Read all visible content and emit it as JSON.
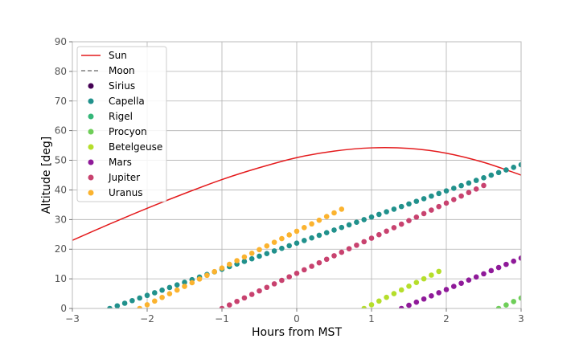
{
  "chart_data": {
    "type": "scatter",
    "xlabel": "Hours from MST",
    "ylabel": "Altitude [deg]",
    "xlim": [
      -3,
      3
    ],
    "ylim": [
      0,
      90
    ],
    "xticks": [
      -3,
      -2,
      -1,
      0,
      1,
      2,
      3
    ],
    "yticks": [
      0,
      10,
      20,
      30,
      40,
      50,
      60,
      70,
      80,
      90
    ],
    "grid": true,
    "legend_position": "top-left",
    "x_step": 0.1,
    "series": [
      {
        "name": "Sun",
        "kind": "line",
        "color": "#e41a1c",
        "x": [
          -3,
          -2.5,
          -2,
          -1.5,
          -1,
          -0.5,
          0,
          0.5,
          1,
          1.5,
          2,
          2.5,
          3
        ],
        "y": [
          23,
          28.5,
          33.8,
          38.8,
          43.5,
          47.5,
          50.9,
          53.1,
          54.2,
          54,
          52.4,
          49.3,
          45
        ]
      },
      {
        "name": "Moon",
        "kind": "dashed-line",
        "color": "#808080",
        "x": [],
        "y": []
      },
      {
        "name": "Sirius",
        "kind": "points",
        "color": "#440154",
        "x": [],
        "y": []
      },
      {
        "name": "Capella",
        "kind": "points",
        "color": "#21918c",
        "x_start": -2.5,
        "x_end": 3.0,
        "y_start": 0,
        "y_end": 48.5
      },
      {
        "name": "Rigel",
        "kind": "points",
        "color": "#35b779",
        "x": [],
        "y": []
      },
      {
        "name": "Procyon",
        "kind": "points",
        "color": "#6ece58",
        "x_start": 2.7,
        "x_end": 3.0,
        "y_start": 0,
        "y_end": 3.5
      },
      {
        "name": "Betelgeuse",
        "kind": "points",
        "color": "#b5de2b",
        "x_start": 0.9,
        "x_end": 1.9,
        "y_start": 0,
        "y_end": 12.5
      },
      {
        "name": "Mars",
        "kind": "points",
        "color": "#8f1a99",
        "x_start": 1.4,
        "x_end": 3.0,
        "y_start": 0,
        "y_end": 17
      },
      {
        "name": "Jupiter",
        "kind": "points",
        "color": "#c8426f",
        "x_start": -1.0,
        "x_end": 2.5,
        "y_start": 0,
        "y_end": 41.5
      },
      {
        "name": "Uranus",
        "kind": "points",
        "color": "#fbb32f",
        "x_start": -2.1,
        "x_end": 0.6,
        "y_start": 0,
        "y_end": 33.5
      }
    ]
  }
}
